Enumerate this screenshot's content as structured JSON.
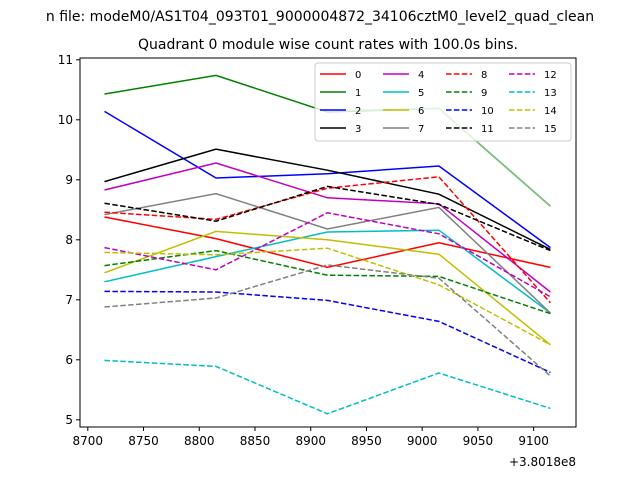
{
  "chart_data": {
    "type": "line",
    "suptitle": "n file: modeM0/AS1T04_093T01_9000004872_34106cztM0_level2_quad_clean",
    "title": "Quadrant 0 module wise count rates with 100.0s bins.",
    "xlabel": "",
    "ylabel": "",
    "x_offset_label": "+3.8018e8",
    "xlim": [
      8693,
      9138
    ],
    "ylim": [
      4.88,
      11.03
    ],
    "x_ticks": [
      8700,
      8750,
      8800,
      8850,
      8900,
      8950,
      9000,
      9050,
      9100
    ],
    "y_ticks": [
      5,
      6,
      7,
      8,
      9,
      10,
      11
    ],
    "grid": false,
    "legend_position": "top-right",
    "x": [
      8715,
      8815,
      8915,
      9015,
      9115
    ],
    "series": [
      {
        "name": "0",
        "color": "#ff0000",
        "dash": "solid",
        "values": [
          8.38,
          8.02,
          7.54,
          7.95,
          7.54
        ]
      },
      {
        "name": "1",
        "color": "#008000",
        "dash": "solid",
        "values": [
          10.43,
          10.74,
          10.13,
          10.19,
          8.56
        ]
      },
      {
        "name": "2",
        "color": "#0000ff",
        "dash": "solid",
        "values": [
          10.14,
          9.03,
          9.1,
          9.23,
          7.87
        ]
      },
      {
        "name": "3",
        "color": "#000000",
        "dash": "solid",
        "values": [
          8.97,
          9.51,
          9.16,
          8.76,
          7.84
        ]
      },
      {
        "name": "4",
        "color": "#bf00bf",
        "dash": "solid",
        "values": [
          8.83,
          9.28,
          8.7,
          8.6,
          7.13
        ]
      },
      {
        "name": "5",
        "color": "#00bfbf",
        "dash": "solid",
        "values": [
          7.3,
          7.72,
          8.13,
          8.16,
          6.78
        ]
      },
      {
        "name": "6",
        "color": "#bfbf00",
        "dash": "solid",
        "values": [
          7.45,
          8.14,
          8.0,
          7.76,
          6.25
        ]
      },
      {
        "name": "7",
        "color": "#808080",
        "dash": "solid",
        "values": [
          8.42,
          8.77,
          8.18,
          8.54,
          6.78
        ]
      },
      {
        "name": "8",
        "color": "#ff0000",
        "dash": "dashed",
        "values": [
          8.46,
          8.34,
          8.86,
          9.05,
          6.95
        ]
      },
      {
        "name": "9",
        "color": "#008000",
        "dash": "dashed",
        "values": [
          7.57,
          7.82,
          7.41,
          7.39,
          6.77
        ]
      },
      {
        "name": "10",
        "color": "#0000ff",
        "dash": "dashed",
        "values": [
          7.14,
          7.13,
          6.99,
          6.64,
          5.79
        ]
      },
      {
        "name": "11",
        "color": "#000000",
        "dash": "dashed",
        "values": [
          8.61,
          8.31,
          8.89,
          8.59,
          7.82
        ]
      },
      {
        "name": "12",
        "color": "#bf00bf",
        "dash": "dashed",
        "values": [
          7.87,
          7.5,
          8.45,
          8.1,
          7.05
        ]
      },
      {
        "name": "13",
        "color": "#00bfbf",
        "dash": "dashed",
        "values": [
          5.99,
          5.89,
          5.1,
          5.78,
          5.19
        ]
      },
      {
        "name": "14",
        "color": "#bfbf00",
        "dash": "dashed",
        "values": [
          7.79,
          7.75,
          7.86,
          7.25,
          6.25
        ]
      },
      {
        "name": "15",
        "color": "#808080",
        "dash": "dashed",
        "values": [
          6.88,
          7.03,
          7.58,
          7.36,
          5.73
        ]
      }
    ],
    "extra_lines": [
      {
        "color": "#7fbf7f",
        "dash": "solid",
        "x": [
          8915,
          9015,
          9115
        ],
        "values": [
          10.15,
          10.19,
          8.56
        ]
      }
    ]
  }
}
